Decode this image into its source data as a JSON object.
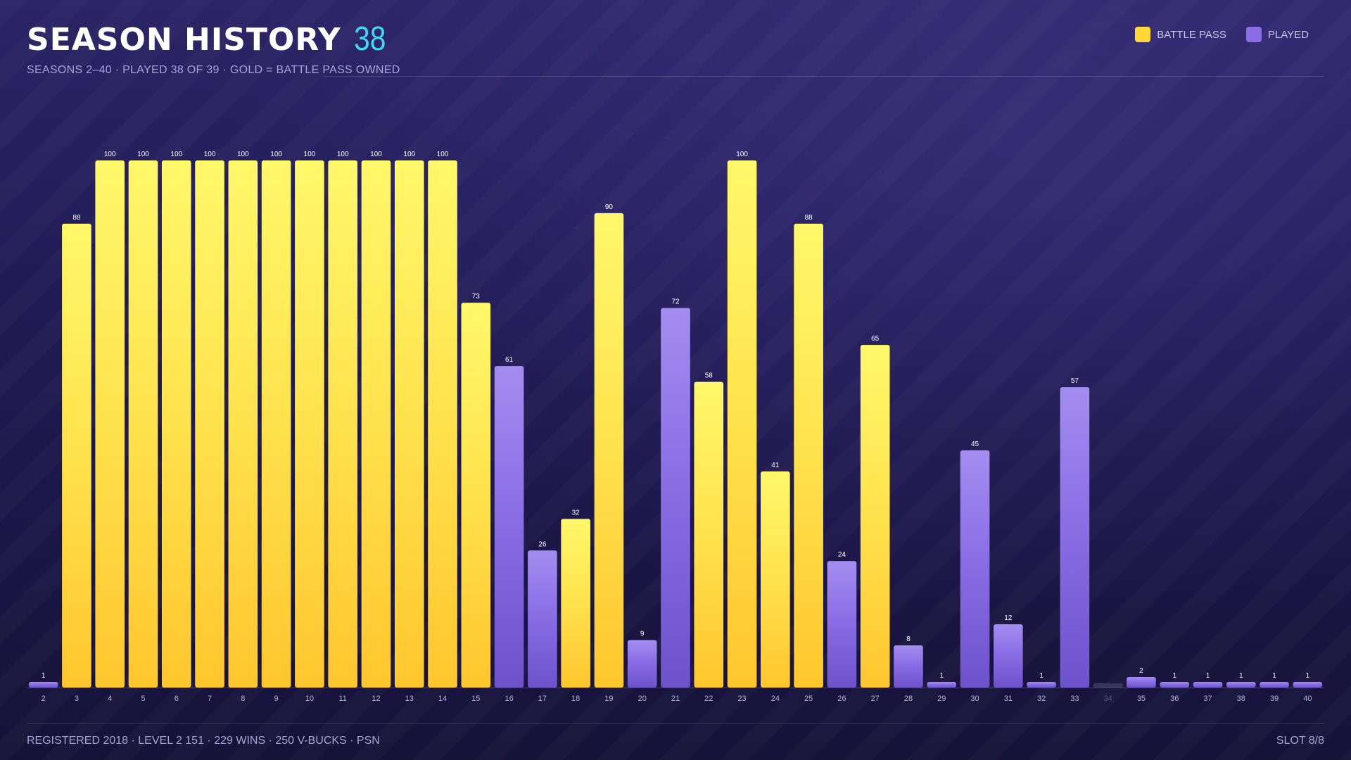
{
  "header": {
    "title": "SEASON HISTORY",
    "count": "38",
    "subtitle": "SEASONS 2–40  ·  PLAYED 38 OF 39  ·  GOLD = BATTLE PASS OWNED"
  },
  "legend": {
    "battle_pass_label": "BATTLE PASS",
    "played_label": "PLAYED",
    "battle_pass_color": "#ffd83a",
    "played_color": "#8b6ee6"
  },
  "footer": {
    "left": "REGISTERED 2018  ·  LEVEL 2 151  ·  229 WINS  ·  250 V-BUCKS  ·  PSN",
    "right": "SLOT 8/8"
  },
  "chart_data": {
    "type": "bar",
    "title": "SEASON HISTORY",
    "ylim": [
      0,
      100
    ],
    "categories": [
      "2",
      "3",
      "4",
      "5",
      "6",
      "7",
      "8",
      "9",
      "10",
      "11",
      "12",
      "13",
      "14",
      "15",
      "16",
      "17",
      "18",
      "19",
      "20",
      "21",
      "22",
      "23",
      "24",
      "25",
      "26",
      "27",
      "28",
      "29",
      "30",
      "31",
      "32",
      "33",
      "34",
      "35",
      "36",
      "37",
      "38",
      "39",
      "40"
    ],
    "values": [
      1,
      88,
      100,
      100,
      100,
      100,
      100,
      100,
      100,
      100,
      100,
      100,
      100,
      73,
      61,
      26,
      32,
      90,
      9,
      72,
      58,
      100,
      41,
      88,
      24,
      65,
      8,
      1,
      45,
      12,
      1,
      57,
      null,
      2,
      1,
      1,
      1,
      1,
      1
    ],
    "battle_pass": [
      false,
      true,
      true,
      true,
      true,
      true,
      true,
      true,
      true,
      true,
      true,
      true,
      true,
      true,
      false,
      false,
      true,
      true,
      false,
      false,
      true,
      true,
      true,
      true,
      false,
      true,
      false,
      false,
      false,
      false,
      false,
      false,
      false,
      false,
      false,
      false,
      false,
      false,
      false
    ],
    "played": [
      true,
      true,
      true,
      true,
      true,
      true,
      true,
      true,
      true,
      true,
      true,
      true,
      true,
      true,
      true,
      true,
      true,
      true,
      true,
      true,
      true,
      true,
      true,
      true,
      true,
      true,
      true,
      true,
      true,
      true,
      true,
      true,
      false,
      true,
      true,
      true,
      true,
      true,
      true
    ]
  }
}
